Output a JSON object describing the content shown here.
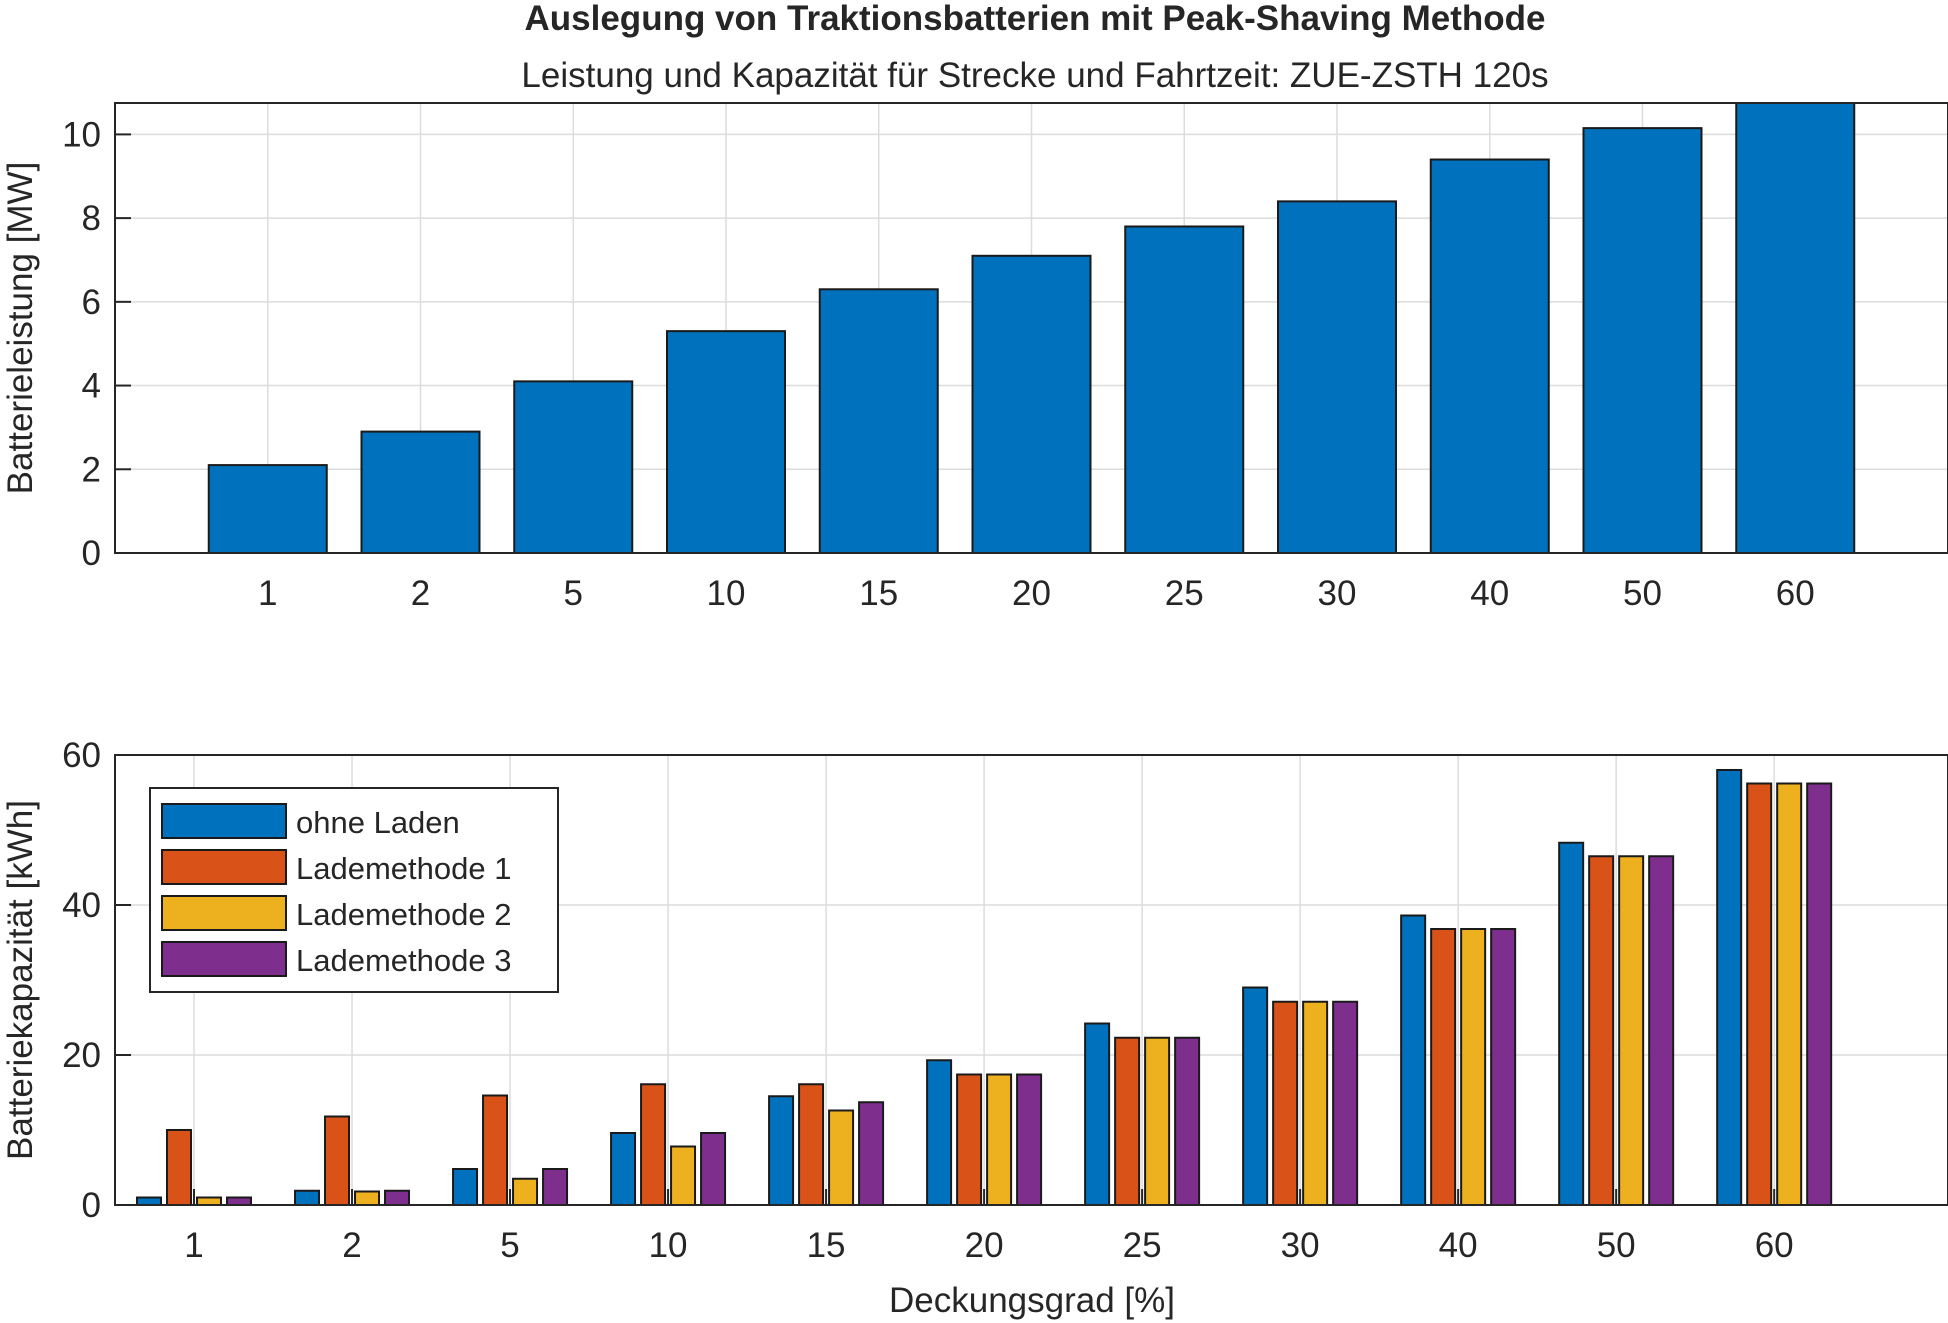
{
  "title": "Auslegung von Traktionsbatterien mit Peak-Shaving Methode",
  "subtitle": "Leistung und Kapazität für Strecke und Fahrtzeit: ZUE-ZSTH 120s",
  "chart_data": [
    {
      "type": "bar",
      "categories": [
        "1",
        "2",
        "5",
        "10",
        "15",
        "20",
        "25",
        "30",
        "40",
        "50",
        "60"
      ],
      "series": [
        {
          "values": [
            2.1,
            2.9,
            4.1,
            5.3,
            6.3,
            7.1,
            7.8,
            8.4,
            9.4,
            10.15,
            10.75
          ],
          "color": "#0072BD"
        }
      ],
      "xlabel": "",
      "ylabel": "Batterieleistung [MW]",
      "ylim": [
        0,
        10.75
      ],
      "yticks": [
        0,
        2,
        4,
        6,
        8,
        10
      ],
      "grid": true
    },
    {
      "type": "bar",
      "categories": [
        "1",
        "2",
        "5",
        "10",
        "15",
        "20",
        "25",
        "30",
        "40",
        "50",
        "60"
      ],
      "series": [
        {
          "name": "ohne Laden",
          "values": [
            1.0,
            1.9,
            4.8,
            9.6,
            14.5,
            19.3,
            24.2,
            29.0,
            38.6,
            48.3,
            58.0
          ],
          "color": "#0072BD"
        },
        {
          "name": "Lademethode 1",
          "values": [
            10.0,
            11.8,
            14.6,
            16.1,
            16.1,
            17.4,
            22.3,
            27.1,
            36.8,
            46.5,
            56.2
          ],
          "color": "#D95319"
        },
        {
          "name": "Lademethode 2",
          "values": [
            1.0,
            1.8,
            3.5,
            7.8,
            12.6,
            17.4,
            22.3,
            27.1,
            36.8,
            46.5,
            56.2
          ],
          "color": "#EDB120"
        },
        {
          "name": "Lademethode 3",
          "values": [
            1.0,
            1.9,
            4.8,
            9.6,
            13.7,
            17.4,
            22.3,
            27.1,
            36.8,
            46.5,
            56.2
          ],
          "color": "#7E2F8E"
        }
      ],
      "xlabel": "Deckungsgrad [%]",
      "ylabel": "Batteriekapazität [kWh]",
      "ylim": [
        0,
        60
      ],
      "yticks": [
        0,
        20,
        40,
        60
      ],
      "grid": true,
      "legend": "top-left"
    }
  ]
}
